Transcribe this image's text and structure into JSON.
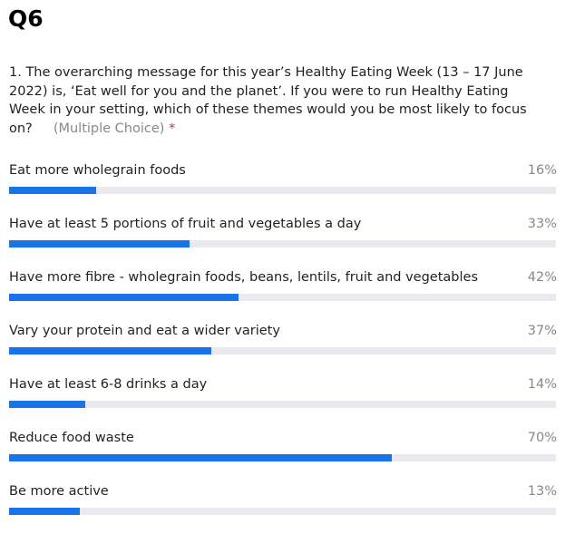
{
  "title": "Q6",
  "question": {
    "text": "1. The overarching message for this year’s Healthy Eating Week (13 – 17 June 2022) is, ‘Eat well for you and the planet’.  If you were to run Healthy Eating Week in your setting, which of these themes would you be most likely to focus on?",
    "type_label": "(Multiple Choice)",
    "required_marker": "*"
  },
  "colors": {
    "bar": "#1a73e8",
    "track": "#e9e9ee",
    "percent_text": "#8a8886",
    "required": "#c4314b"
  },
  "chart_data": {
    "type": "bar",
    "orientation": "horizontal",
    "title": "",
    "categories": [
      "Eat more wholegrain foods",
      "Have at least 5 portions of fruit and vegetables a day",
      "Have more fibre -  wholegrain foods, beans, lentils, fruit and vegetables",
      "Vary your protein and eat a wider variety",
      "Have at least 6-8 drinks a day",
      "Reduce food waste",
      "Be more active"
    ],
    "values": [
      16,
      33,
      42,
      37,
      14,
      70,
      13
    ],
    "value_labels": [
      "16%",
      "33%",
      "42%",
      "37%",
      "14%",
      "70%",
      "13%"
    ],
    "xlim": [
      0,
      100
    ],
    "unit": "%",
    "grid": false,
    "legend": "none"
  }
}
